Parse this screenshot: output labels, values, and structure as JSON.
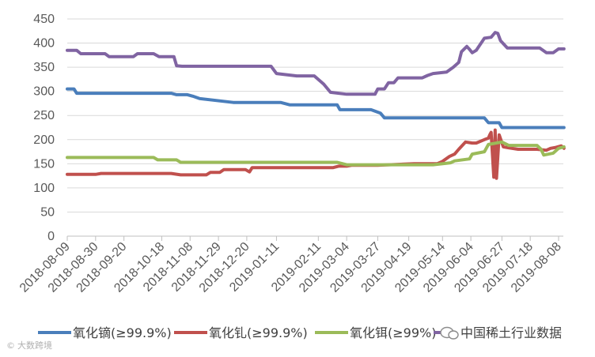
{
  "chart_data": {
    "type": "line",
    "title": "",
    "xlabel": "",
    "ylabel": "",
    "ylim": [
      0,
      450
    ],
    "yticks": [
      "0",
      "50",
      "100",
      "150",
      "200",
      "250",
      "300",
      "350",
      "400",
      "450"
    ],
    "categories": [
      "2018-08-09",
      "2018-08-30",
      "2018-09-20",
      "2018-10-18",
      "2018-11-08",
      "2018-11-29",
      "2018-12-20",
      "2019-01-11",
      "2019-02-11",
      "2019-03-04",
      "2019-03-27",
      "2019-04-19",
      "2019-05-14",
      "2019-06-04",
      "2019-06-27",
      "2019-07-18",
      "2019-08-08"
    ],
    "grid": "horizontal",
    "legend_position": "bottom",
    "series": [
      {
        "name": "氧化镝(≥99.9%)",
        "color": "#4a7ebb",
        "x": [
          "2018-08-09",
          "2018-08-14",
          "2018-08-16",
          "2018-10-25",
          "2018-10-29",
          "2018-11-06",
          "2018-11-10",
          "2018-11-15",
          "2018-12-10",
          "2019-01-14",
          "2019-01-21",
          "2019-02-25",
          "2019-02-27",
          "2019-03-22",
          "2019-03-29",
          "2019-04-01",
          "2019-06-14",
          "2019-06-17",
          "2019-06-25",
          "2019-06-27",
          "2019-08-12"
        ],
        "values": [
          305,
          305,
          296,
          296,
          293,
          293,
          290,
          285,
          277,
          277,
          272,
          272,
          262,
          262,
          255,
          245,
          245,
          235,
          235,
          225,
          225
        ]
      },
      {
        "name": "氧化钆(≥99.9%)",
        "color": "#c0504d",
        "x": [
          "2018-08-09",
          "2018-08-30",
          "2018-09-03",
          "2018-10-25",
          "2018-11-01",
          "2018-11-20",
          "2018-11-23",
          "2018-11-30",
          "2018-12-03",
          "2018-12-19",
          "2018-12-22",
          "2018-12-24",
          "2019-01-15",
          "2019-02-22",
          "2019-02-26",
          "2019-03-04",
          "2019-03-08",
          "2019-03-27",
          "2019-04-23",
          "2019-05-10",
          "2019-05-14",
          "2019-05-19",
          "2019-05-23",
          "2019-05-26",
          "2019-05-31",
          "2019-06-05",
          "2019-06-08",
          "2019-06-14",
          "2019-06-17",
          "2019-06-18",
          "2019-06-19",
          "2019-06-21",
          "2019-06-22",
          "2019-06-23",
          "2019-06-25",
          "2019-06-28",
          "2019-07-02",
          "2019-07-09",
          "2019-07-18",
          "2019-07-23",
          "2019-07-30",
          "2019-08-02",
          "2019-08-06",
          "2019-08-10",
          "2019-08-12"
        ],
        "values": [
          128,
          128,
          130,
          130,
          127,
          127,
          132,
          132,
          138,
          138,
          133,
          142,
          142,
          142,
          145,
          145,
          147,
          147,
          150,
          150,
          155,
          165,
          170,
          180,
          195,
          193,
          193,
          200,
          203,
          210,
          215,
          122,
          220,
          120,
          210,
          185,
          183,
          180,
          180,
          180,
          178,
          182,
          184,
          187,
          182
        ]
      },
      {
        "name": "氧化铒(≥99%)",
        "color": "#9bbb59",
        "x": [
          "2018-08-09",
          "2018-10-12",
          "2018-10-15",
          "2018-10-29",
          "2018-11-01",
          "2019-02-25",
          "2019-03-04",
          "2019-05-07",
          "2019-05-20",
          "2019-05-23",
          "2019-06-03",
          "2019-06-05",
          "2019-06-14",
          "2019-06-17",
          "2019-06-27",
          "2019-07-02",
          "2019-07-23",
          "2019-07-26",
          "2019-07-28",
          "2019-08-04",
          "2019-08-08",
          "2019-08-12"
        ],
        "values": [
          163,
          163,
          158,
          158,
          153,
          153,
          148,
          148,
          152,
          156,
          160,
          170,
          175,
          190,
          195,
          188,
          188,
          180,
          168,
          172,
          182,
          185
        ]
      },
      {
        "name": "中国稀土行业数据",
        "color": "#8064a2",
        "x": [
          "2018-08-09",
          "2018-08-16",
          "2018-08-19",
          "2018-09-06",
          "2018-09-09",
          "2018-09-27",
          "2018-09-30",
          "2018-10-12",
          "2018-10-16",
          "2018-10-27",
          "2018-10-29",
          "2018-11-02",
          "2019-01-07",
          "2019-01-11",
          "2019-01-26",
          "2019-02-08",
          "2019-02-15",
          "2019-02-20",
          "2019-03-04",
          "2019-03-25",
          "2019-03-27",
          "2019-04-01",
          "2019-04-04",
          "2019-04-08",
          "2019-04-11",
          "2019-04-29",
          "2019-05-03",
          "2019-05-07",
          "2019-05-17",
          "2019-05-22",
          "2019-05-26",
          "2019-05-28",
          "2019-06-01",
          "2019-06-03",
          "2019-06-05",
          "2019-06-08",
          "2019-06-14",
          "2019-06-19",
          "2019-06-22",
          "2019-06-24",
          "2019-06-26",
          "2019-07-01",
          "2019-07-25",
          "2019-07-30",
          "2019-08-04",
          "2019-08-08",
          "2019-08-12"
        ],
        "values": [
          385,
          385,
          378,
          378,
          372,
          372,
          378,
          378,
          372,
          372,
          353,
          352,
          352,
          337,
          332,
          332,
          315,
          298,
          294,
          294,
          305,
          305,
          318,
          318,
          328,
          328,
          333,
          337,
          340,
          350,
          360,
          382,
          393,
          387,
          380,
          385,
          410,
          412,
          422,
          420,
          405,
          390,
          390,
          380,
          380,
          388,
          388
        ]
      }
    ]
  },
  "legend": {
    "items": [
      "氧化镝(≥99.9%)",
      "氧化钆(≥99.9%)",
      "氧化铒(≥99%)",
      "中国稀土行业数据"
    ]
  },
  "watermark": {
    "left_text": "大数跨境",
    "left_mark": "©",
    "wechat_icon": "wechat-icon"
  }
}
